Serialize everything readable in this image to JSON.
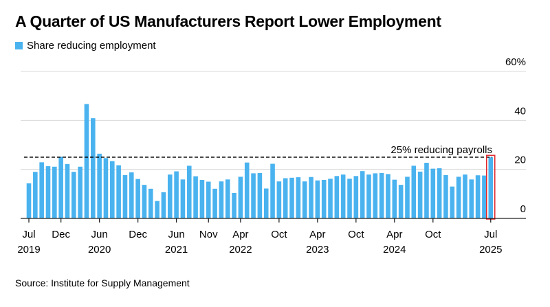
{
  "title": "A Quarter of US Manufacturers Report Lower Employment",
  "source": "Source: Institute for Supply Management",
  "colors": {
    "bar": "#4ab3ef",
    "highlight": "#e0262b",
    "reference": "#000000",
    "grid": "#d9d9d9"
  },
  "chart_data": {
    "type": "bar",
    "title": "A Quarter of US Manufacturers Report Lower Employment",
    "series": [
      {
        "name": "Share reducing employment",
        "start": "2019-07",
        "end": "2025-07",
        "frequency": "monthly",
        "values": [
          14.3,
          19.0,
          22.9,
          21.3,
          21.1,
          25.2,
          22.2,
          19.0,
          21.1,
          46.7,
          40.9,
          26.4,
          24.6,
          23.4,
          21.7,
          17.7,
          18.8,
          16.1,
          13.7,
          12.1,
          7.1,
          10.7,
          17.9,
          19.2,
          15.9,
          21.5,
          17.2,
          15.7,
          15.0,
          12.1,
          15.1,
          15.9,
          10.4,
          17.0,
          22.8,
          18.4,
          18.5,
          12.2,
          22.3,
          15.1,
          16.4,
          16.6,
          16.8,
          15.1,
          16.9,
          15.5,
          15.7,
          16.2,
          17.3,
          17.9,
          16.2,
          17.3,
          19.3,
          17.9,
          18.4,
          18.5,
          18.1,
          15.8,
          13.7,
          17.0,
          21.5,
          19.1,
          22.7,
          20.3,
          20.5,
          17.7,
          13.0,
          17.0,
          17.9,
          15.9,
          17.6,
          17.5,
          24.9
        ]
      }
    ],
    "x_ticks": [
      {
        "index": 0,
        "month": "Jul",
        "year": "2019"
      },
      {
        "index": 5,
        "month": "Dec",
        "year": ""
      },
      {
        "index": 11,
        "month": "Jun",
        "year": "2020"
      },
      {
        "index": 17,
        "month": "Dec",
        "year": ""
      },
      {
        "index": 23,
        "month": "Jun",
        "year": "2021"
      },
      {
        "index": 28,
        "month": "Nov",
        "year": ""
      },
      {
        "index": 33,
        "month": "Apr",
        "year": "2022"
      },
      {
        "index": 39,
        "month": "Oct",
        "year": ""
      },
      {
        "index": 45,
        "month": "Apr",
        "year": "2023"
      },
      {
        "index": 51,
        "month": "Oct",
        "year": ""
      },
      {
        "index": 57,
        "month": "Apr",
        "year": "2024"
      },
      {
        "index": 63,
        "month": "Oct",
        "year": ""
      },
      {
        "index": 72,
        "month": "Jul",
        "year": "2025"
      }
    ],
    "y_ticks": [
      {
        "value": 0,
        "label": "0"
      },
      {
        "value": 20,
        "label": "20"
      },
      {
        "value": 40,
        "label": "40"
      },
      {
        "value": 60,
        "label": "60%"
      }
    ],
    "ylim": [
      0,
      60
    ],
    "y_axis_side": "right",
    "grid": true,
    "legend": "top-left",
    "reference_line": {
      "value": 25,
      "label": "25% reducing payrolls",
      "style": "dashed"
    },
    "highlight_index": 72
  }
}
